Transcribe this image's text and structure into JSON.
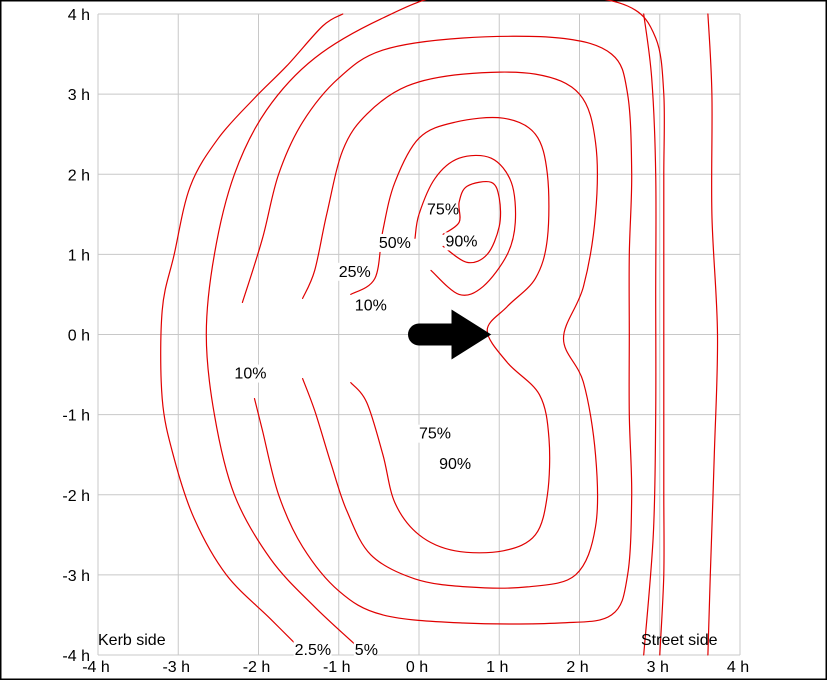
{
  "chart_data": {
    "type": "contour",
    "xlim": [
      -4,
      4
    ],
    "ylim": [
      -4,
      4
    ],
    "grid": true,
    "x_ticks": [
      "-4 h",
      "-3 h",
      "-2 h",
      "-1 h",
      "0 h",
      "1 h",
      "2 h",
      "3 h",
      "4 h"
    ],
    "y_ticks": [
      "4 h",
      "3 h",
      "2 h",
      "1 h",
      "0 h",
      "-1 h",
      "-2 h",
      "-3 h",
      "-4 h"
    ],
    "side_labels": {
      "left": "Kerb side",
      "right": "Street side"
    },
    "arrow": {
      "from": [
        0,
        0
      ],
      "to": [
        0.9,
        0
      ],
      "color": "#000000"
    },
    "contour_color": "#e00000",
    "contour_labels": [
      {
        "text": "75%",
        "x": 0.1,
        "y": 1.5
      },
      {
        "text": "50%",
        "x": -0.5,
        "y": 1.08
      },
      {
        "text": "90%",
        "x": 0.33,
        "y": 1.1
      },
      {
        "text": "25%",
        "x": -1.0,
        "y": 0.72
      },
      {
        "text": "10%",
        "x": -0.8,
        "y": 0.3
      },
      {
        "text": "10%",
        "x": -2.3,
        "y": -0.55
      },
      {
        "text": "75%",
        "x": 0.0,
        "y": -1.3
      },
      {
        "text": "90%",
        "x": 0.25,
        "y": -1.68
      },
      {
        "text": "2.5%",
        "x": -1.55,
        "y": -4.0
      },
      {
        "text": "5%",
        "x": -0.8,
        "y": -4.0
      }
    ],
    "contours": [
      {
        "level": "90%",
        "points": [
          [
            0.3,
            1.1
          ],
          [
            0.6,
            0.9
          ],
          [
            0.85,
            1.0
          ],
          [
            1.0,
            1.35
          ],
          [
            1.0,
            1.7
          ],
          [
            0.9,
            1.9
          ],
          [
            0.6,
            1.85
          ],
          [
            0.5,
            1.65
          ],
          [
            0.5,
            1.4
          ],
          [
            0.3,
            1.25
          ]
        ]
      },
      {
        "level": "75%",
        "points": [
          [
            -0.05,
            1.2
          ],
          [
            0.0,
            1.5
          ],
          [
            0.2,
            1.95
          ],
          [
            0.5,
            2.2
          ],
          [
            0.9,
            2.2
          ],
          [
            1.15,
            1.9
          ],
          [
            1.2,
            1.4
          ],
          [
            1.1,
            1.0
          ],
          [
            0.8,
            0.6
          ],
          [
            0.5,
            0.5
          ],
          [
            0.15,
            0.8
          ]
        ]
      },
      {
        "level": "50%",
        "points": [
          [
            -0.85,
            0.5
          ],
          [
            -0.55,
            0.7
          ],
          [
            -0.45,
            1.3
          ],
          [
            -0.3,
            1.9
          ],
          [
            0.0,
            2.45
          ],
          [
            0.45,
            2.65
          ],
          [
            1.05,
            2.7
          ],
          [
            1.45,
            2.5
          ],
          [
            1.6,
            2.0
          ],
          [
            1.6,
            1.2
          ],
          [
            1.45,
            0.7
          ],
          [
            1.1,
            0.35
          ],
          [
            0.85,
            0.05
          ],
          [
            1.1,
            -0.35
          ],
          [
            1.5,
            -0.75
          ],
          [
            1.62,
            -1.3
          ],
          [
            1.6,
            -2.0
          ],
          [
            1.45,
            -2.5
          ],
          [
            1.05,
            -2.7
          ],
          [
            0.45,
            -2.7
          ],
          [
            0.0,
            -2.5
          ],
          [
            -0.3,
            -2.1
          ],
          [
            -0.45,
            -1.5
          ],
          [
            -0.65,
            -0.85
          ],
          [
            -0.85,
            -0.6
          ]
        ]
      },
      {
        "level": "25%",
        "points": [
          [
            -1.45,
            -0.55
          ],
          [
            -1.3,
            -0.95
          ],
          [
            -1.1,
            -1.6
          ],
          [
            -0.9,
            -2.2
          ],
          [
            -0.6,
            -2.75
          ],
          [
            -0.05,
            -3.05
          ],
          [
            0.6,
            -3.15
          ],
          [
            1.35,
            -3.15
          ],
          [
            1.95,
            -3.0
          ],
          [
            2.2,
            -2.4
          ],
          [
            2.2,
            -1.5
          ],
          [
            2.05,
            -0.6
          ],
          [
            1.8,
            -0.05
          ],
          [
            2.05,
            0.6
          ],
          [
            2.2,
            1.5
          ],
          [
            2.2,
            2.4
          ],
          [
            2.0,
            3.0
          ],
          [
            1.45,
            3.25
          ],
          [
            0.55,
            3.25
          ],
          [
            -0.15,
            3.1
          ],
          [
            -0.65,
            2.75
          ],
          [
            -0.95,
            2.3
          ],
          [
            -1.15,
            1.5
          ],
          [
            -1.3,
            0.8
          ],
          [
            -1.45,
            0.45
          ]
        ]
      },
      {
        "level": "10%",
        "points": [
          [
            -2.2,
            0.4
          ],
          [
            -1.95,
            1.2
          ],
          [
            -1.75,
            2.0
          ],
          [
            -1.45,
            2.65
          ],
          [
            -1.0,
            3.2
          ],
          [
            -0.45,
            3.55
          ],
          [
            0.55,
            3.7
          ],
          [
            1.75,
            3.7
          ],
          [
            2.4,
            3.5
          ],
          [
            2.6,
            3.0
          ],
          [
            2.65,
            2.0
          ],
          [
            2.62,
            1.0
          ],
          [
            2.62,
            0.0
          ],
          [
            2.62,
            -1.0
          ],
          [
            2.65,
            -2.0
          ],
          [
            2.6,
            -3.0
          ],
          [
            2.4,
            -3.5
          ],
          [
            1.75,
            -3.6
          ],
          [
            0.55,
            -3.6
          ],
          [
            -0.45,
            -3.5
          ],
          [
            -1.0,
            -3.2
          ],
          [
            -1.45,
            -2.65
          ],
          [
            -1.75,
            -2.0
          ],
          [
            -1.95,
            -1.2
          ],
          [
            -2.05,
            -0.8
          ]
        ]
      },
      {
        "level": "5%",
        "points": [
          [
            -0.65,
            -4.0
          ],
          [
            -1.3,
            -3.4
          ],
          [
            -1.85,
            -2.8
          ],
          [
            -2.3,
            -2.0
          ],
          [
            -2.55,
            -1.0
          ],
          [
            -2.65,
            0.0
          ],
          [
            -2.55,
            1.0
          ],
          [
            -2.3,
            2.0
          ],
          [
            -1.9,
            2.8
          ],
          [
            -1.3,
            3.45
          ],
          [
            -0.45,
            3.95
          ],
          [
            0.4,
            4.25
          ],
          [
            1.7,
            4.25
          ],
          [
            2.6,
            4.1
          ],
          [
            2.95,
            3.7
          ],
          [
            3.05,
            3.0
          ],
          [
            3.05,
            2.0
          ],
          [
            3.05,
            1.0
          ],
          [
            3.05,
            0.0
          ],
          [
            3.05,
            -1.0
          ],
          [
            3.05,
            -2.0
          ],
          [
            3.05,
            -3.0
          ],
          [
            3.0,
            -4.0
          ]
        ]
      },
      {
        "level": "2.5%",
        "points": [
          [
            -1.4,
            -4.0
          ],
          [
            -1.85,
            -3.55
          ],
          [
            -2.4,
            -3.0
          ],
          [
            -2.8,
            -2.3
          ],
          [
            -3.05,
            -1.55
          ],
          [
            -3.2,
            -0.8
          ],
          [
            -3.2,
            0.3
          ],
          [
            -3.05,
            1.0
          ],
          [
            -2.85,
            1.85
          ],
          [
            -2.5,
            2.45
          ],
          [
            -2.05,
            2.95
          ],
          [
            -1.65,
            3.35
          ],
          [
            -1.2,
            3.85
          ],
          [
            -0.95,
            4.0
          ]
        ]
      },
      {
        "level": "edge",
        "points": [
          [
            2.8,
            4.0
          ],
          [
            2.9,
            3.2
          ],
          [
            2.95,
            2.0
          ],
          [
            2.95,
            0.5
          ],
          [
            2.95,
            -1.0
          ],
          [
            2.92,
            -2.5
          ],
          [
            2.8,
            -4.0
          ]
        ]
      },
      {
        "level": "edge2",
        "points": [
          [
            3.6,
            4.0
          ],
          [
            3.65,
            3.0
          ],
          [
            3.65,
            1.5
          ],
          [
            3.72,
            0.0
          ],
          [
            3.68,
            -1.5
          ],
          [
            3.63,
            -3.0
          ],
          [
            3.6,
            -4.0
          ]
        ]
      }
    ]
  }
}
